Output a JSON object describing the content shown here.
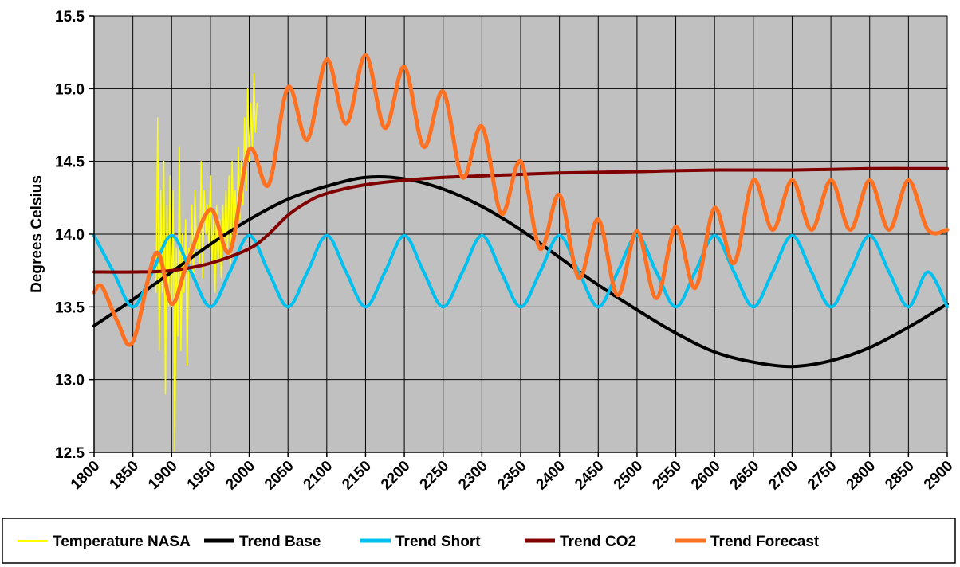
{
  "chart_data": {
    "type": "line",
    "title": "",
    "xlabel": "",
    "ylabel": "Degrees Celsius",
    "xlim": [
      1800,
      2900
    ],
    "ylim": [
      12.5,
      15.5
    ],
    "x_ticks": [
      1800,
      1850,
      1900,
      1950,
      2000,
      2050,
      2100,
      2150,
      2200,
      2250,
      2300,
      2350,
      2400,
      2450,
      2500,
      2550,
      2600,
      2650,
      2700,
      2750,
      2800,
      2850,
      2900
    ],
    "x_tick_labels": [
      "1800",
      "1850",
      "1900",
      "1950",
      "2000",
      "2050",
      "2100",
      "2150",
      "2200",
      "2250",
      "2300",
      "2350",
      "2400",
      "2450",
      "2500",
      "2550",
      "2600",
      "2650",
      "2700",
      "2750",
      "2800",
      "2850",
      "2900"
    ],
    "y_ticks": [
      12.5,
      13.0,
      13.5,
      14.0,
      14.5,
      15.0,
      15.5
    ],
    "y_tick_labels": [
      "12.5",
      "13.0",
      "13.5",
      "14.0",
      "14.5",
      "15.0",
      "15.5"
    ],
    "grid": true,
    "plot_background": "#c0c0c0",
    "legend_position": "bottom",
    "series": [
      {
        "name": "Temperature NASA",
        "color": "#ffff00",
        "x": [
          1880,
          1882,
          1884,
          1886,
          1888,
          1890,
          1892,
          1894,
          1896,
          1898,
          1900,
          1902,
          1904,
          1906,
          1908,
          1910,
          1912,
          1914,
          1916,
          1918,
          1920,
          1922,
          1924,
          1926,
          1928,
          1930,
          1932,
          1934,
          1936,
          1938,
          1940,
          1942,
          1944,
          1946,
          1948,
          1950,
          1952,
          1954,
          1956,
          1958,
          1960,
          1962,
          1964,
          1966,
          1968,
          1970,
          1972,
          1974,
          1976,
          1978,
          1980,
          1982,
          1984,
          1986,
          1988,
          1990,
          1992,
          1994,
          1996,
          1998,
          2000,
          2002,
          2004,
          2006,
          2008,
          2010
        ],
        "values": [
          13.6,
          14.8,
          13.2,
          14.3,
          13.6,
          14.5,
          12.9,
          14.2,
          13.5,
          14.4,
          13.5,
          14.3,
          12.5,
          13.9,
          13.3,
          14.6,
          13.2,
          14.0,
          13.6,
          14.1,
          13.1,
          13.9,
          13.8,
          14.2,
          13.7,
          14.3,
          13.9,
          14.0,
          13.8,
          14.5,
          13.7,
          14.3,
          14.0,
          14.2,
          13.9,
          14.4,
          13.8,
          14.1,
          13.6,
          14.2,
          13.8,
          14.1,
          13.7,
          14.2,
          13.9,
          14.3,
          13.9,
          14.4,
          13.8,
          14.5,
          14.0,
          14.3,
          14.0,
          14.6,
          14.1,
          14.5,
          14.2,
          14.8,
          14.3,
          15.0,
          14.5,
          14.9,
          14.6,
          15.1,
          14.7,
          14.9
        ]
      },
      {
        "name": "Trend Base",
        "color": "#000000",
        "x": [
          1800,
          1850,
          1900,
          1950,
          2000,
          2050,
          2100,
          2150,
          2200,
          2250,
          2300,
          2350,
          2400,
          2450,
          2500,
          2550,
          2600,
          2650,
          2700,
          2750,
          2800,
          2850,
          2900
        ],
        "values": [
          13.37,
          13.55,
          13.74,
          13.93,
          14.1,
          14.24,
          14.33,
          14.39,
          14.38,
          14.31,
          14.19,
          14.03,
          13.84,
          13.65,
          13.48,
          13.32,
          13.19,
          13.12,
          13.09,
          13.13,
          13.22,
          13.36,
          13.52
        ]
      },
      {
        "name": "Trend  Short",
        "color": "#00c0f0",
        "x": [
          1800,
          1825,
          1850,
          1875,
          1900,
          1925,
          1950,
          1975,
          2000,
          2025,
          2050,
          2075,
          2100,
          2125,
          2150,
          2175,
          2200,
          2225,
          2250,
          2275,
          2300,
          2325,
          2350,
          2375,
          2400,
          2425,
          2450,
          2475,
          2500,
          2525,
          2550,
          2575,
          2600,
          2625,
          2650,
          2675,
          2700,
          2725,
          2750,
          2775,
          2800,
          2825,
          2850,
          2875,
          2900
        ],
        "values": [
          13.99,
          13.74,
          13.5,
          13.74,
          13.99,
          13.74,
          13.5,
          13.74,
          13.99,
          13.74,
          13.5,
          13.74,
          13.99,
          13.74,
          13.5,
          13.74,
          13.99,
          13.74,
          13.5,
          13.74,
          13.99,
          13.74,
          13.5,
          13.74,
          13.99,
          13.74,
          13.5,
          13.74,
          13.99,
          13.74,
          13.5,
          13.74,
          13.99,
          13.74,
          13.5,
          13.74,
          13.99,
          13.74,
          13.5,
          13.74,
          13.99,
          13.74,
          13.5,
          13.74,
          13.5
        ]
      },
      {
        "name": "Trend CO2",
        "color": "#800000",
        "x": [
          1800,
          1850,
          1900,
          1950,
          2000,
          2025,
          2050,
          2075,
          2100,
          2150,
          2200,
          2250,
          2300,
          2400,
          2500,
          2600,
          2700,
          2800,
          2900
        ],
        "values": [
          13.74,
          13.74,
          13.75,
          13.8,
          13.9,
          14.0,
          14.13,
          14.22,
          14.28,
          14.34,
          14.37,
          14.39,
          14.4,
          14.42,
          14.43,
          14.44,
          14.44,
          14.45,
          14.45
        ]
      },
      {
        "name": "Trend  Forecast",
        "color": "#ff7020",
        "x": [
          1800,
          1810,
          1830,
          1850,
          1880,
          1900,
          1920,
          1950,
          1975,
          2000,
          2025,
          2050,
          2075,
          2100,
          2125,
          2150,
          2175,
          2200,
          2225,
          2250,
          2275,
          2300,
          2325,
          2350,
          2375,
          2400,
          2425,
          2450,
          2475,
          2500,
          2525,
          2550,
          2575,
          2600,
          2625,
          2650,
          2675,
          2700,
          2725,
          2750,
          2775,
          2800,
          2825,
          2850,
          2875,
          2900
        ],
        "values": [
          13.6,
          13.64,
          13.4,
          13.26,
          13.87,
          13.52,
          13.8,
          14.17,
          13.88,
          14.58,
          14.34,
          15.01,
          14.65,
          15.2,
          14.76,
          15.23,
          14.73,
          15.15,
          14.6,
          14.98,
          14.39,
          14.74,
          14.14,
          14.5,
          13.9,
          14.27,
          13.7,
          14.1,
          13.58,
          14.02,
          13.56,
          14.05,
          13.63,
          14.18,
          13.8,
          14.37,
          14.03,
          14.37,
          14.03,
          14.37,
          14.03,
          14.37,
          14.03,
          14.37,
          14.03,
          14.03
        ]
      }
    ]
  }
}
